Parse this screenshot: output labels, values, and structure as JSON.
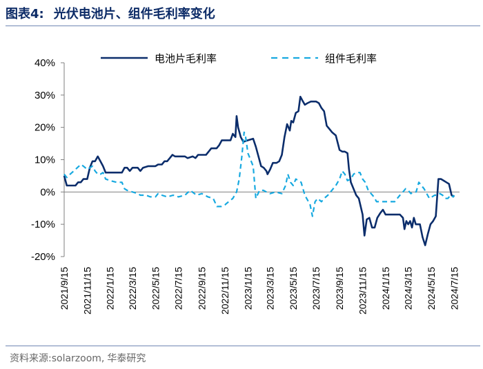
{
  "header": {
    "fig_label": "图表4:",
    "title": "光伏电池片、组件毛利率变化"
  },
  "footer": {
    "source_label": "资料来源:",
    "source_text": "solarzoom,",
    "org": "华泰研究"
  },
  "colors": {
    "cell": "#0b2d6b",
    "module": "#17a9e0",
    "accent": "#0b2a66"
  },
  "chart_data": {
    "type": "line",
    "title": "光伏电池片、组件毛利率变化",
    "ylim": [
      -20,
      40
    ],
    "yticks": [
      40,
      30,
      20,
      10,
      0,
      -10,
      -20
    ],
    "ytick_labels": [
      "40%",
      "30%",
      "20%",
      "10%",
      "0%",
      "-10%",
      "-20%"
    ],
    "xlim": [
      "2021/9/15",
      "2024/7/29"
    ],
    "xtick_dates": [
      "2021/9/15",
      "2021/11/15",
      "2022/1/15",
      "2022/3/15",
      "2022/5/15",
      "2022/7/15",
      "2022/9/15",
      "2022/11/15",
      "2023/1/15",
      "2023/3/15",
      "2023/5/15",
      "2023/7/15",
      "2023/9/15",
      "2023/11/15",
      "2024/1/15",
      "2024/3/15",
      "2024/5/15",
      "2024/7/15"
    ],
    "legend_position": "top",
    "series": [
      {
        "name": "电池片毛利率",
        "style": "solid",
        "points": [
          [
            "2021/9/15",
            5
          ],
          [
            "2021/9/22",
            2
          ],
          [
            "2021/10/1",
            2
          ],
          [
            "2021/10/15",
            2
          ],
          [
            "2021/10/22",
            3
          ],
          [
            "2021/10/29",
            3
          ],
          [
            "2021/11/5",
            4
          ],
          [
            "2021/11/15",
            4
          ],
          [
            "2021/11/22",
            7.5
          ],
          [
            "2021/11/29",
            9.5
          ],
          [
            "2021/12/6",
            9.5
          ],
          [
            "2021/12/13",
            11
          ],
          [
            "2021/12/20",
            9.5
          ],
          [
            "2021/12/27",
            8
          ],
          [
            "2022/1/3",
            6
          ],
          [
            "2022/1/10",
            6
          ],
          [
            "2022/2/1",
            6
          ],
          [
            "2022/2/15",
            6
          ],
          [
            "2022/2/22",
            7.5
          ],
          [
            "2022/3/1",
            7.5
          ],
          [
            "2022/3/8",
            6.5
          ],
          [
            "2022/3/15",
            7.5
          ],
          [
            "2022/3/29",
            7.5
          ],
          [
            "2022/4/5",
            6.5
          ],
          [
            "2022/4/12",
            7.5
          ],
          [
            "2022/4/26",
            8
          ],
          [
            "2022/5/15",
            8
          ],
          [
            "2022/5/22",
            8.5
          ],
          [
            "2022/6/1",
            8.5
          ],
          [
            "2022/6/8",
            9.5
          ],
          [
            "2022/6/15",
            9.5
          ],
          [
            "2022/6/22",
            10.5
          ],
          [
            "2022/6/29",
            11.5
          ],
          [
            "2022/7/6",
            11
          ],
          [
            "2022/8/1",
            11
          ],
          [
            "2022/8/8",
            10.5
          ],
          [
            "2022/8/22",
            11
          ],
          [
            "2022/8/29",
            10.5
          ],
          [
            "2022/9/5",
            11.5
          ],
          [
            "2022/9/12",
            11.5
          ],
          [
            "2022/9/26",
            11.5
          ],
          [
            "2022/10/3",
            12.5
          ],
          [
            "2022/10/10",
            13.5
          ],
          [
            "2022/10/24",
            13.5
          ],
          [
            "2022/10/31",
            14.5
          ],
          [
            "2022/11/7",
            16
          ],
          [
            "2022/11/30",
            16
          ],
          [
            "2022/12/6",
            18
          ],
          [
            "2022/12/13",
            17
          ],
          [
            "2022/12/16",
            23.5
          ],
          [
            "2022/12/20",
            20
          ],
          [
            "2022/12/27",
            17
          ],
          [
            "2023/1/3",
            15.5
          ],
          [
            "2023/1/15",
            16
          ],
          [
            "2023/1/29",
            16.5
          ],
          [
            "2023/2/5",
            14
          ],
          [
            "2023/2/12",
            11
          ],
          [
            "2023/2/19",
            8
          ],
          [
            "2023/2/26",
            7.5
          ],
          [
            "2023/3/5",
            6.5
          ],
          [
            "2023/3/8",
            5.5
          ],
          [
            "2023/3/15",
            7
          ],
          [
            "2023/3/22",
            9
          ],
          [
            "2023/4/1",
            9
          ],
          [
            "2023/4/8",
            9.5
          ],
          [
            "2023/4/15",
            11.5
          ],
          [
            "2023/4/22",
            17
          ],
          [
            "2023/4/29",
            21
          ],
          [
            "2023/5/6",
            19
          ],
          [
            "2023/5/10",
            22
          ],
          [
            "2023/5/15",
            21.5
          ],
          [
            "2023/5/22",
            24.5
          ],
          [
            "2023/5/29",
            25
          ],
          [
            "2023/6/3",
            29.5
          ],
          [
            "2023/6/10",
            28
          ],
          [
            "2023/6/15",
            27
          ],
          [
            "2023/6/22",
            27.5
          ],
          [
            "2023/7/1",
            28
          ],
          [
            "2023/7/8",
            28
          ],
          [
            "2023/7/15",
            28
          ],
          [
            "2023/7/22",
            27.5
          ],
          [
            "2023/7/29",
            26
          ],
          [
            "2023/8/5",
            25
          ],
          [
            "2023/8/12",
            20.5
          ],
          [
            "2023/8/19",
            19.5
          ],
          [
            "2023/8/26",
            18.5
          ],
          [
            "2023/9/5",
            17.5
          ],
          [
            "2023/9/15",
            13
          ],
          [
            "2023/9/22",
            12.5
          ],
          [
            "2023/9/29",
            12.5
          ],
          [
            "2023/10/6",
            12
          ],
          [
            "2023/10/10",
            7
          ],
          [
            "2023/10/15",
            3
          ],
          [
            "2023/10/22",
            1
          ],
          [
            "2023/10/29",
            -1
          ],
          [
            "2023/11/5",
            -2
          ],
          [
            "2023/11/15",
            -7
          ],
          [
            "2023/11/20",
            -13.5
          ],
          [
            "2023/11/26",
            -8.5
          ],
          [
            "2023/12/3",
            -8
          ],
          [
            "2023/12/10",
            -11
          ],
          [
            "2023/12/17",
            -11
          ],
          [
            "2023/12/24",
            -8
          ],
          [
            "2024/1/1",
            -6.5
          ],
          [
            "2024/1/8",
            -5.5
          ],
          [
            "2024/1/15",
            -7
          ],
          [
            "2024/1/22",
            -7
          ],
          [
            "2024/2/1",
            -7
          ],
          [
            "2024/2/15",
            -7
          ],
          [
            "2024/2/22",
            -7
          ],
          [
            "2024/3/1",
            -8
          ],
          [
            "2024/3/5",
            -11.5
          ],
          [
            "2024/3/10",
            -9
          ],
          [
            "2024/3/15",
            -10
          ],
          [
            "2024/3/20",
            -9
          ],
          [
            "2024/3/25",
            -11
          ],
          [
            "2024/3/30",
            -8
          ],
          [
            "2024/4/4",
            -10
          ],
          [
            "2024/4/15",
            -10
          ],
          [
            "2024/4/22",
            -14
          ],
          [
            "2024/4/29",
            -16.5
          ],
          [
            "2024/5/6",
            -13
          ],
          [
            "2024/5/13",
            -10
          ],
          [
            "2024/5/20",
            -9
          ],
          [
            "2024/5/27",
            -7.5
          ],
          [
            "2024/6/3",
            4
          ],
          [
            "2024/6/10",
            4
          ],
          [
            "2024/6/17",
            3.5
          ],
          [
            "2024/6/24",
            3
          ],
          [
            "2024/7/1",
            2.5
          ],
          [
            "2024/7/8",
            -1
          ],
          [
            "2024/7/15",
            -1.5
          ]
        ]
      },
      {
        "name": "组件毛利率",
        "style": "dashed",
        "points": [
          [
            "2021/9/15",
            5.5
          ],
          [
            "2021/9/22",
            4.5
          ],
          [
            "2021/10/1",
            5.5
          ],
          [
            "2021/10/15",
            7
          ],
          [
            "2021/10/29",
            8.5
          ],
          [
            "2021/11/5",
            8
          ],
          [
            "2021/11/15",
            7
          ],
          [
            "2021/11/29",
            8
          ],
          [
            "2021/12/6",
            6.5
          ],
          [
            "2021/12/13",
            5.5
          ],
          [
            "2021/12/20",
            5.5
          ],
          [
            "2021/12/27",
            6
          ],
          [
            "2022/1/3",
            4
          ],
          [
            "2022/1/15",
            3.5
          ],
          [
            "2022/2/1",
            3
          ],
          [
            "2022/2/15",
            3
          ],
          [
            "2022/2/22",
            1
          ],
          [
            "2022/3/1",
            0.5
          ],
          [
            "2022/3/15",
            0
          ],
          [
            "2022/3/29",
            -0.5
          ],
          [
            "2022/4/5",
            -1
          ],
          [
            "2022/4/20",
            -1
          ],
          [
            "2022/5/1",
            -1.5
          ],
          [
            "2022/5/15",
            -1.5
          ],
          [
            "2022/5/22",
            -0.5
          ],
          [
            "2022/6/1",
            -1
          ],
          [
            "2022/6/15",
            -1.5
          ],
          [
            "2022/7/1",
            -1
          ],
          [
            "2022/7/15",
            -1.5
          ],
          [
            "2022/8/1",
            -1
          ],
          [
            "2022/8/15",
            0.5
          ],
          [
            "2022/9/1",
            -1
          ],
          [
            "2022/9/15",
            -0.5
          ],
          [
            "2022/10/1",
            -1.5
          ],
          [
            "2022/10/15",
            -2
          ],
          [
            "2022/10/25",
            -4.5
          ],
          [
            "2022/11/5",
            -4.5
          ],
          [
            "2022/11/15",
            -4
          ],
          [
            "2022/11/25",
            -3
          ],
          [
            "2022/12/6",
            -2
          ],
          [
            "2022/12/16",
            0
          ],
          [
            "2022/12/23",
            4
          ],
          [
            "2022/12/30",
            11
          ],
          [
            "2023/1/5",
            18.5
          ],
          [
            "2023/1/9",
            17
          ],
          [
            "2023/1/15",
            12
          ],
          [
            "2023/1/22",
            10
          ],
          [
            "2023/1/29",
            8
          ],
          [
            "2023/2/5",
            -2
          ],
          [
            "2023/2/15",
            0.5
          ],
          [
            "2023/2/25",
            0.5
          ],
          [
            "2023/3/5",
            0
          ],
          [
            "2023/3/15",
            -0.5
          ],
          [
            "2023/3/29",
            0
          ],
          [
            "2023/4/15",
            -0.5
          ],
          [
            "2023/4/25",
            2
          ],
          [
            "2023/5/1",
            5.5
          ],
          [
            "2023/5/8",
            3
          ],
          [
            "2023/5/15",
            2
          ],
          [
            "2023/5/22",
            4
          ],
          [
            "2023/5/29",
            3.5
          ],
          [
            "2023/6/5",
            3
          ],
          [
            "2023/6/15",
            -1
          ],
          [
            "2023/6/22",
            -2.5
          ],
          [
            "2023/6/29",
            -4
          ],
          [
            "2023/7/5",
            -7.5
          ],
          [
            "2023/7/12",
            -3
          ],
          [
            "2023/7/19",
            -2
          ],
          [
            "2023/7/29",
            -3
          ],
          [
            "2023/8/5",
            -2
          ],
          [
            "2023/8/15",
            -1
          ],
          [
            "2023/8/29",
            1
          ],
          [
            "2023/9/5",
            2
          ],
          [
            "2023/9/15",
            4
          ],
          [
            "2023/9/22",
            6.5
          ],
          [
            "2023/9/29",
            5.5
          ],
          [
            "2023/10/6",
            3.5
          ],
          [
            "2023/10/15",
            4
          ],
          [
            "2023/10/22",
            5.5
          ],
          [
            "2023/10/29",
            6
          ],
          [
            "2023/11/8",
            6
          ],
          [
            "2023/11/15",
            4
          ],
          [
            "2023/11/22",
            3
          ],
          [
            "2023/11/30",
            0.5
          ],
          [
            "2023/12/15",
            -1.5
          ],
          [
            "2023/12/22",
            -3
          ],
          [
            "2023/12/29",
            -3
          ],
          [
            "2024/1/15",
            -3
          ],
          [
            "2024/1/29",
            -3
          ],
          [
            "2024/2/8",
            -3
          ],
          [
            "2024/2/22",
            -1
          ],
          [
            "2024/3/1",
            0
          ],
          [
            "2024/3/8",
            1
          ],
          [
            "2024/3/15",
            0.5
          ],
          [
            "2024/3/22",
            -0.5
          ],
          [
            "2024/3/29",
            0
          ],
          [
            "2024/4/5",
            0
          ],
          [
            "2024/4/12",
            3
          ],
          [
            "2024/4/19",
            2
          ],
          [
            "2024/4/26",
            1
          ],
          [
            "2024/5/3",
            -0.5
          ],
          [
            "2024/5/10",
            -2
          ],
          [
            "2024/5/17",
            -1.5
          ],
          [
            "2024/5/24",
            -1
          ],
          [
            "2024/5/31",
            -1
          ],
          [
            "2024/6/7",
            -0.5
          ],
          [
            "2024/6/14",
            -1
          ],
          [
            "2024/6/21",
            -2
          ],
          [
            "2024/6/28",
            -2
          ],
          [
            "2024/7/5",
            -1
          ],
          [
            "2024/7/12",
            -1.5
          ],
          [
            "2024/7/15",
            -1
          ]
        ]
      }
    ]
  }
}
